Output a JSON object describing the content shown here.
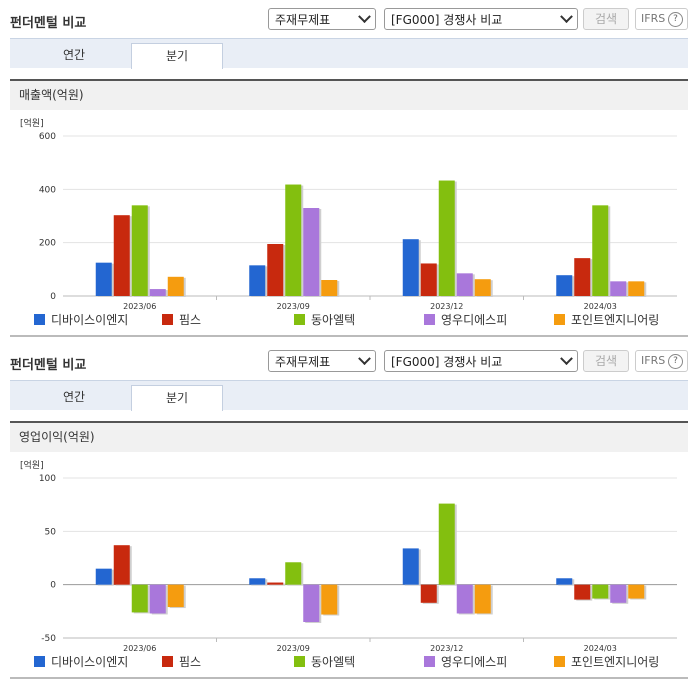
{
  "header": {
    "title": "펀더멘털 비교",
    "select_statement": "주재무제표",
    "select_peer": "[FG000] 경쟁사 비교",
    "search_label": "검색",
    "ifrs_label": "IFRS",
    "help_glyph": "?"
  },
  "tabs": [
    "연간",
    "분기"
  ],
  "active_tab": 1,
  "colors": {
    "series": [
      "#2366d1",
      "#c8290e",
      "#83bf0f",
      "#a977db",
      "#f59c0f"
    ]
  },
  "charts": [
    {
      "subtitle": "매출액(억원)",
      "unit": "[억원]",
      "chart_data": {
        "type": "bar",
        "categories": [
          "2023/06",
          "2023/09",
          "2023/12",
          "2024/03"
        ],
        "ylim": [
          0,
          600
        ],
        "yticks": [
          0,
          200,
          400,
          600
        ],
        "grid": true,
        "legend": "bottom",
        "series": [
          {
            "name": "디바이스이엔지",
            "values": [
              125,
              115,
              213,
              78
            ]
          },
          {
            "name": "핌스",
            "values": [
              303,
              195,
              122,
              142
            ]
          },
          {
            "name": "동아엘텍",
            "values": [
              340,
              418,
              433,
              340
            ]
          },
          {
            "name": "영우디에스피",
            "values": [
              26,
              330,
              85,
              55
            ]
          },
          {
            "name": "포인트엔지니어링",
            "values": [
              72,
              60,
              63,
              55
            ]
          }
        ]
      }
    },
    {
      "subtitle": "영업이익(억원)",
      "unit": "[억원]",
      "chart_data": {
        "type": "bar",
        "categories": [
          "2023/06",
          "2023/09",
          "2023/12",
          "2024/03"
        ],
        "ylim": [
          -50,
          100
        ],
        "yticks": [
          -50,
          0,
          50,
          100
        ],
        "grid": true,
        "legend": "bottom",
        "series": [
          {
            "name": "디바이스이엔지",
            "values": [
              15,
              6,
              34,
              6
            ]
          },
          {
            "name": "핌스",
            "values": [
              37,
              2,
              -17,
              -14
            ]
          },
          {
            "name": "동아엘텍",
            "values": [
              -26,
              21,
              76,
              -13
            ]
          },
          {
            "name": "영우디에스피",
            "values": [
              -27,
              -35,
              -27,
              -17
            ]
          },
          {
            "name": "포인트엔지니어링",
            "values": [
              -21,
              -28,
              -27,
              -13
            ]
          }
        ]
      }
    }
  ]
}
